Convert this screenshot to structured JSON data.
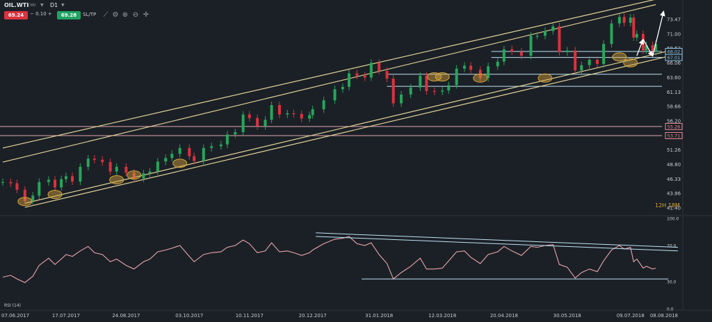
{
  "toolbar": {
    "symbol": "OIL.WTI",
    "market_tag": "CMD",
    "timeframe": "D1",
    "sell_price": "69.24",
    "spread": "0.10",
    "buy_price": "69.28",
    "sltp_label": "SL/TP",
    "sell_color": "#d9333f",
    "buy_color": "#1fa363",
    "icons": [
      "line-chart-icon",
      "settings-icon",
      "zoom-in-icon",
      "zoom-out-icon",
      "crosshair-icon"
    ]
  },
  "candle_countdown": "12H 18M",
  "rsi_label": "RSI (14)",
  "chart_data": [
    {
      "type": "candlestick",
      "instrument": "OIL.WTI",
      "timeframe": "D1",
      "x_ticks": [
        "07.06.2017",
        "17.07.2017",
        "24.08.2017",
        "03.10.2017",
        "10.11.2017",
        "20.12.2017",
        "31.01.2018",
        "12.03.2018",
        "20.04.2018",
        "30.05.2018",
        "09.07.2018",
        "08.08.2018"
      ],
      "y_ticks": [
        73.47,
        71.0,
        68.53,
        66.06,
        63.6,
        61.13,
        58.66,
        56.2,
        53.73,
        51.26,
        48.8,
        46.33,
        43.86,
        41.4
      ],
      "ylim": [
        41.4,
        73.47
      ],
      "series": [
        {
          "style": "candles",
          "up_color": "#26a65b",
          "down_color": "#d9333f",
          "points": [
            [
              "07.06.2017",
              45.8
            ],
            [
              "12.06.2017",
              45.6
            ],
            [
              "16.06.2017",
              44.5
            ],
            [
              "21.06.2017",
              42.6
            ],
            [
              "26.06.2017",
              43.5
            ],
            [
              "30.06.2017",
              45.8
            ],
            [
              "06.07.2017",
              46.2
            ],
            [
              "10.07.2017",
              44.9
            ],
            [
              "14.07.2017",
              46.3
            ],
            [
              "17.07.2017",
              46.8
            ],
            [
              "21.07.2017",
              45.9
            ],
            [
              "26.07.2017",
              48.4
            ],
            [
              "31.07.2017",
              49.8
            ],
            [
              "04.08.2017",
              49.6
            ],
            [
              "09.08.2017",
              49.2
            ],
            [
              "14.08.2017",
              47.6
            ],
            [
              "18.08.2017",
              48.4
            ],
            [
              "24.08.2017",
              47.4
            ],
            [
              "29.08.2017",
              46.4
            ],
            [
              "04.09.2017",
              47.3
            ],
            [
              "08.09.2017",
              47.6
            ],
            [
              "13.09.2017",
              49.3
            ],
            [
              "18.09.2017",
              49.9
            ],
            [
              "22.09.2017",
              50.6
            ],
            [
              "27.09.2017",
              51.6
            ],
            [
              "03.10.2017",
              50.2
            ],
            [
              "06.10.2017",
              49.4
            ],
            [
              "12.10.2017",
              51.6
            ],
            [
              "17.10.2017",
              51.9
            ],
            [
              "23.10.2017",
              52.2
            ],
            [
              "27.10.2017",
              53.9
            ],
            [
              "01.11.2017",
              54.3
            ],
            [
              "06.11.2017",
              57.3
            ],
            [
              "10.11.2017",
              56.7
            ],
            [
              "15.11.2017",
              55.3
            ],
            [
              "20.11.2017",
              56.4
            ],
            [
              "24.11.2017",
              58.9
            ],
            [
              "29.11.2017",
              57.3
            ],
            [
              "04.12.2017",
              57.5
            ],
            [
              "08.12.2017",
              57.4
            ],
            [
              "13.12.2017",
              56.6
            ],
            [
              "18.12.2017",
              57.2
            ],
            [
              "20.12.2017",
              58.2
            ],
            [
              "27.12.2017",
              59.7
            ],
            [
              "03.01.2018",
              61.6
            ],
            [
              "08.01.2018",
              62.0
            ],
            [
              "12.01.2018",
              64.3
            ],
            [
              "17.01.2018",
              63.9
            ],
            [
              "22.01.2018",
              63.6
            ],
            [
              "26.01.2018",
              66.1
            ],
            [
              "31.01.2018",
              64.7
            ],
            [
              "05.02.2018",
              63.4
            ],
            [
              "09.02.2018",
              59.2
            ],
            [
              "14.02.2018",
              60.7
            ],
            [
              "20.02.2018",
              61.9
            ],
            [
              "26.02.2018",
              63.9
            ],
            [
              "02.03.2018",
              61.3
            ],
            [
              "07.03.2018",
              61.2
            ],
            [
              "12.03.2018",
              61.4
            ],
            [
              "16.03.2018",
              62.3
            ],
            [
              "21.03.2018",
              65.1
            ],
            [
              "26.03.2018",
              65.6
            ],
            [
              "30.03.2018",
              64.9
            ],
            [
              "05.04.2018",
              63.5
            ],
            [
              "10.04.2018",
              65.5
            ],
            [
              "16.04.2018",
              66.3
            ],
            [
              "20.04.2018",
              68.4
            ],
            [
              "25.04.2018",
              68.0
            ],
            [
              "01.05.2018",
              67.3
            ],
            [
              "07.05.2018",
              70.7
            ],
            [
              "11.05.2018",
              70.7
            ],
            [
              "16.05.2018",
              71.5
            ],
            [
              "21.05.2018",
              72.3
            ],
            [
              "25.05.2018",
              67.9
            ],
            [
              "30.05.2018",
              68.2
            ],
            [
              "04.06.2018",
              64.8
            ],
            [
              "08.06.2018",
              65.7
            ],
            [
              "13.06.2018",
              66.6
            ],
            [
              "18.06.2018",
              65.9
            ],
            [
              "22.06.2018",
              69.3
            ],
            [
              "27.06.2018",
              72.8
            ],
            [
              "02.07.2018",
              73.9
            ],
            [
              "05.07.2018",
              72.9
            ],
            [
              "09.07.2018",
              73.8
            ],
            [
              "11.07.2018",
              70.4
            ],
            [
              "13.07.2018",
              71.0
            ],
            [
              "17.07.2018",
              68.2
            ],
            [
              "19.07.2018",
              69.1
            ],
            [
              "23.07.2018",
              68.0
            ],
            [
              "25.07.2018",
              69.3
            ]
          ]
        },
        {
          "name": "Current price",
          "style": "level-label",
          "values": [
            {
              "y": 68.02,
              "text": "68.02",
              "color": "#8ec2e0"
            },
            {
              "y": 67.01,
              "text": "67.01",
              "color": "#8ec2e0"
            }
          ]
        },
        {
          "style": "level-label",
          "values": [
            {
              "y": 55.26,
              "text": "55.26",
              "color": "#e88a96"
            },
            {
              "y": 53.71,
              "text": "53.71",
              "color": "#e88a96"
            }
          ]
        }
      ],
      "horizontal_lines": [
        {
          "y": 55.26,
          "color": "#e6a7b0"
        },
        {
          "y": 53.71,
          "color": "#e6a7b0"
        },
        {
          "y": 68.02,
          "color": "#bfe3f5",
          "from": "12.04.2018"
        },
        {
          "y": 67.01,
          "color": "#bfe3f5",
          "from": "12.04.2018"
        },
        {
          "y": 64.15,
          "color": "#bfe3f5",
          "from": "05.02.2018"
        },
        {
          "y": 62.1,
          "color": "#bfe3f5",
          "from": "05.02.2018"
        }
      ],
      "channel_lines": [
        {
          "color": "#e3d49a",
          "from": [
            "07.06.2017",
            49.2
          ],
          "to": [
            "25.07.2018",
            76.0
          ]
        },
        {
          "color": "#e3d49a",
          "from": [
            "07.06.2017",
            51.6
          ],
          "to": [
            "25.07.2018",
            76.9
          ]
        },
        {
          "color": "#e3d49a",
          "from": [
            "21.06.2017",
            41.5
          ],
          "to": [
            "05.08.2018",
            67.4
          ]
        },
        {
          "color": "#e3d49a",
          "from": [
            "21.06.2017",
            42.2
          ],
          "to": [
            "05.08.2018",
            68.3
          ]
        }
      ],
      "highlight_marks": [
        [
          "21.06.2017",
          42.5
        ],
        [
          "10.07.2017",
          43.7
        ],
        [
          "18.08.2017",
          46.2
        ],
        [
          "29.08.2017",
          47.0
        ],
        [
          "27.09.2017",
          49.0
        ],
        [
          "07.03.2018",
          63.7
        ],
        [
          "12.03.2018",
          63.7
        ],
        [
          "05.04.2018",
          63.5
        ],
        [
          "16.05.2018",
          63.5
        ],
        [
          "02.07.2018",
          67.1
        ],
        [
          "09.07.2018",
          66.1
        ]
      ],
      "projection_arrows": [
        {
          "from": [
            "13.07.2018",
            67.3
          ],
          "to": [
            "17.07.2018",
            70.1
          ]
        },
        {
          "from": [
            "17.07.2018",
            70.1
          ],
          "to": [
            "23.07.2018",
            67.2
          ]
        },
        {
          "from": [
            "23.07.2018",
            67.2
          ],
          "to": [
            "30.07.2018",
            74.9
          ]
        }
      ]
    },
    {
      "type": "line",
      "title": "RSI (14)",
      "y_ticks": [
        100.0,
        70.0,
        30.0,
        0.0
      ],
      "ylim": [
        0,
        100
      ],
      "series": [
        {
          "name": "RSI (14)",
          "color": "#e8a6ad",
          "values": [
            [
              "07.06.2017",
              35
            ],
            [
              "12.06.2017",
              37
            ],
            [
              "16.06.2017",
              33
            ],
            [
              "21.06.2017",
              29
            ],
            [
              "26.06.2017",
              36
            ],
            [
              "30.06.2017",
              48
            ],
            [
              "06.07.2017",
              56
            ],
            [
              "10.07.2017",
              49
            ],
            [
              "14.07.2017",
              55
            ],
            [
              "17.07.2017",
              60
            ],
            [
              "21.07.2017",
              58
            ],
            [
              "26.07.2017",
              64
            ],
            [
              "31.07.2017",
              69
            ],
            [
              "04.08.2017",
              62
            ],
            [
              "09.08.2017",
              60
            ],
            [
              "14.08.2017",
              52
            ],
            [
              "18.08.2017",
              55
            ],
            [
              "24.08.2017",
              48
            ],
            [
              "29.08.2017",
              44
            ],
            [
              "04.09.2017",
              52
            ],
            [
              "08.09.2017",
              55
            ],
            [
              "13.09.2017",
              63
            ],
            [
              "18.09.2017",
              65
            ],
            [
              "22.09.2017",
              67
            ],
            [
              "27.09.2017",
              70
            ],
            [
              "03.10.2017",
              58
            ],
            [
              "06.10.2017",
              52
            ],
            [
              "12.10.2017",
              60
            ],
            [
              "17.10.2017",
              62
            ],
            [
              "23.10.2017",
              63
            ],
            [
              "27.10.2017",
              68
            ],
            [
              "01.11.2017",
              70
            ],
            [
              "06.11.2017",
              76
            ],
            [
              "10.11.2017",
              72
            ],
            [
              "15.11.2017",
              62
            ],
            [
              "20.11.2017",
              64
            ],
            [
              "24.11.2017",
              73
            ],
            [
              "29.11.2017",
              63
            ],
            [
              "04.12.2017",
              64
            ],
            [
              "08.12.2017",
              62
            ],
            [
              "13.12.2017",
              59
            ],
            [
              "18.12.2017",
              62
            ],
            [
              "20.12.2017",
              65
            ],
            [
              "27.12.2017",
              72
            ],
            [
              "03.01.2018",
              77
            ],
            [
              "08.01.2018",
              78
            ],
            [
              "12.01.2018",
              80
            ],
            [
              "17.01.2018",
              72
            ],
            [
              "22.01.2018",
              70
            ],
            [
              "26.01.2018",
              73
            ],
            [
              "31.01.2018",
              60
            ],
            [
              "05.02.2018",
              50
            ],
            [
              "09.02.2018",
              33
            ],
            [
              "14.02.2018",
              40
            ],
            [
              "20.02.2018",
              47
            ],
            [
              "26.02.2018",
              56
            ],
            [
              "02.03.2018",
              44
            ],
            [
              "07.03.2018",
              44
            ],
            [
              "12.03.2018",
              45
            ],
            [
              "16.03.2018",
              53
            ],
            [
              "21.03.2018",
              63
            ],
            [
              "26.03.2018",
              64
            ],
            [
              "30.03.2018",
              57
            ],
            [
              "05.04.2018",
              50
            ],
            [
              "10.04.2018",
              60
            ],
            [
              "16.04.2018",
              63
            ],
            [
              "20.04.2018",
              69
            ],
            [
              "25.04.2018",
              64
            ],
            [
              "01.05.2018",
              59
            ],
            [
              "07.05.2018",
              69
            ],
            [
              "11.05.2018",
              68
            ],
            [
              "16.05.2018",
              70
            ],
            [
              "21.05.2018",
              71
            ],
            [
              "25.05.2018",
              49
            ],
            [
              "30.05.2018",
              46
            ],
            [
              "04.06.2018",
              34
            ],
            [
              "08.06.2018",
              40
            ],
            [
              "13.06.2018",
              44
            ],
            [
              "18.06.2018",
              41
            ],
            [
              "22.06.2018",
              53
            ],
            [
              "27.06.2018",
              65
            ],
            [
              "02.07.2018",
              70
            ],
            [
              "05.07.2018",
              66
            ],
            [
              "09.07.2018",
              68
            ],
            [
              "11.07.2018",
              52
            ],
            [
              "13.07.2018",
              55
            ],
            [
              "17.07.2018",
              45
            ],
            [
              "19.07.2018",
              47
            ],
            [
              "23.07.2018",
              44
            ],
            [
              "25.07.2018",
              45
            ]
          ]
        }
      ],
      "trend_lines": [
        {
          "color": "#bfe3f5",
          "from": [
            "22.12.2017",
            84
          ],
          "to": [
            "08.08.2018",
            68
          ]
        },
        {
          "color": "#bfe3f5",
          "from": [
            "22.12.2017",
            80
          ],
          "to": [
            "08.08.2018",
            64
          ]
        },
        {
          "color": "#bfe3f5",
          "from": [
            "20.01.2018",
            33
          ],
          "to": [
            "02.08.2018",
            33
          ]
        }
      ]
    }
  ]
}
